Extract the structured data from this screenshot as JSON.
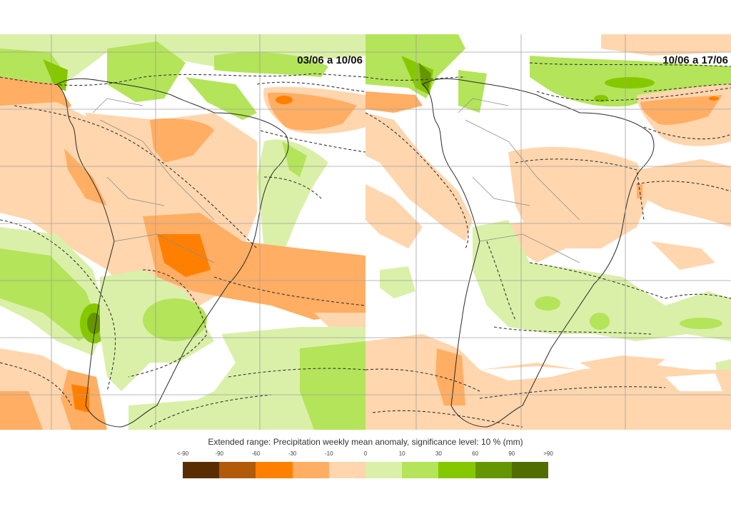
{
  "panels": [
    {
      "id": "left",
      "title": "03/06 a 10/06"
    },
    {
      "id": "right",
      "title": "10/06 a 17/06"
    }
  ],
  "legend": {
    "title": "Extended range: Precipitation weekly mean anomaly, significance level: 10 % (mm)",
    "ticks": [
      "<-90",
      "-90",
      "-60",
      "-30",
      "-10",
      "0",
      "10",
      "30",
      "60",
      "90",
      ">90"
    ],
    "colors": [
      "#5a2d00",
      "#b05a0a",
      "#ff8000",
      "#ffae64",
      "#ffd6ae",
      "#daf0a8",
      "#b4e45a",
      "#86c800",
      "#659600",
      "#506e00"
    ]
  },
  "palette": {
    "neg_light": "#ffd6ae",
    "neg_mid": "#ffae64",
    "neg_strong": "#ff8000",
    "pos_light": "#daf0a8",
    "pos_mid": "#b4e45a",
    "pos_strong": "#86c800",
    "pos_deep": "#659600",
    "grid": "#a0a0a0",
    "coast": "#222222",
    "border": "#888888",
    "sig_contour": "#333333"
  }
}
